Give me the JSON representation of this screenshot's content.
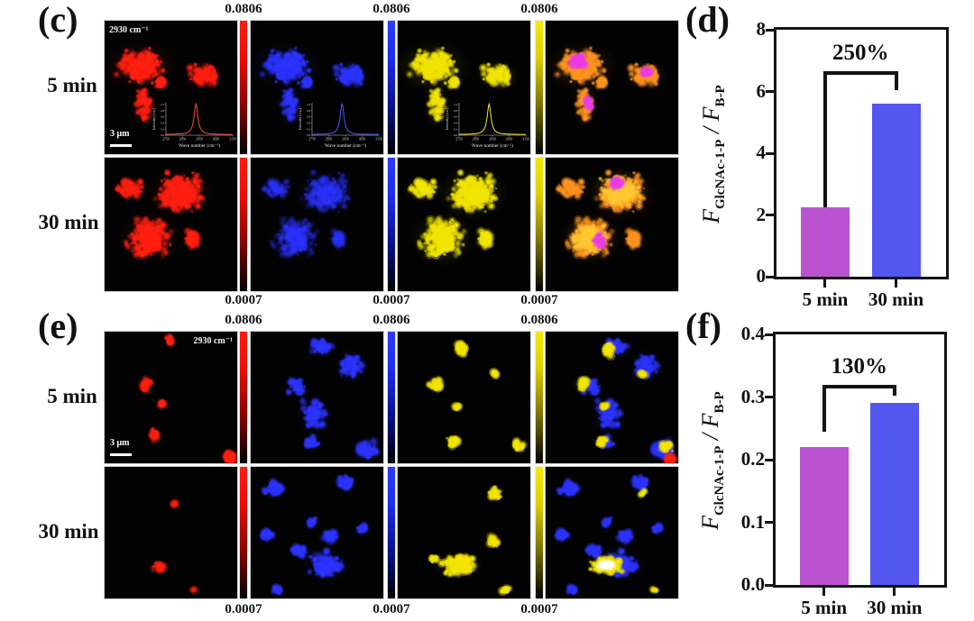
{
  "colors": {
    "bar_5min": "#bb53d1",
    "bar_30min": "#5456f0",
    "red_channel": "#ff2012",
    "blue_channel": "#2d34ff",
    "yellow_channel": "#f2e500",
    "merge_orange": "#ff9420",
    "merge_magenta": "#ea3cea"
  },
  "panel_c": {
    "label": "(c)",
    "row_labels": [
      "5 min",
      "30 min"
    ],
    "wavenumber_label": "2930 cm⁻¹",
    "scalebar_label": "3 μm",
    "colorbar_max": "0.0806",
    "colorbar_min": "0.0007",
    "inset": {
      "ylabel": "Intensity (a.u.)",
      "xlabel": "Wave number (cm⁻¹)",
      "xticks": [
        "2750",
        "2850",
        "2950",
        "3050",
        "3150"
      ],
      "yticks": [
        "0.0",
        "0.2",
        "0.4",
        "0.6",
        "0.8",
        "1.0"
      ],
      "peak_wavenumber": "2930"
    }
  },
  "panel_e": {
    "label": "(e)",
    "row_labels": [
      "5 min",
      "30 min"
    ],
    "wavenumber_label": "2930 cm⁻¹",
    "scalebar_label": "3 μm",
    "colorbar_max": "0.0806",
    "colorbar_min": "0.0007"
  },
  "panel_d": {
    "label": "(d)"
  },
  "panel_f": {
    "label": "(f)"
  },
  "chart_data": [
    {
      "type": "bar",
      "panel": "d",
      "categories": [
        "5 min",
        "30 min"
      ],
      "values": [
        2.25,
        5.6
      ],
      "bar_colors": [
        "#bb53d1",
        "#5456f0"
      ],
      "ylabel": "F_GlcNAc-1-P / F_B-P",
      "ylabel_parts": [
        [
          "F",
          "italic"
        ],
        [
          "GlcNAc-1-P",
          "sub"
        ],
        [
          " / ",
          "plain"
        ],
        [
          "F",
          "italic"
        ],
        [
          "B-P",
          "sub"
        ]
      ],
      "ylim": [
        0,
        8
      ],
      "yticks": [
        "0",
        "2",
        "4",
        "6",
        "8"
      ],
      "annotation": "250%",
      "bracket": {
        "top": 6.6,
        "left_end": 2.25,
        "right_end": 6.05
      },
      "grid": false,
      "legend": "none"
    },
    {
      "type": "bar",
      "panel": "f",
      "categories": [
        "5 min",
        "30 min"
      ],
      "values": [
        0.22,
        0.29
      ],
      "bar_colors": [
        "#bb53d1",
        "#5456f0"
      ],
      "ylabel": "F_GlcNAc-1-P / F_B-P",
      "ylabel_parts": [
        [
          "F",
          "italic"
        ],
        [
          "GlcNAc-1-P",
          "sub"
        ],
        [
          " / ",
          "plain"
        ],
        [
          "F",
          "italic"
        ],
        [
          "B-P",
          "sub"
        ]
      ],
      "ylim": [
        0,
        0.4
      ],
      "yticks": [
        "0.0",
        "0.1",
        "0.2",
        "0.3",
        "0.4"
      ],
      "annotation": "130%",
      "bracket": {
        "top": 0.317,
        "left_end": 0.245,
        "right_end": 0.302
      },
      "grid": false,
      "legend": "none"
    }
  ]
}
